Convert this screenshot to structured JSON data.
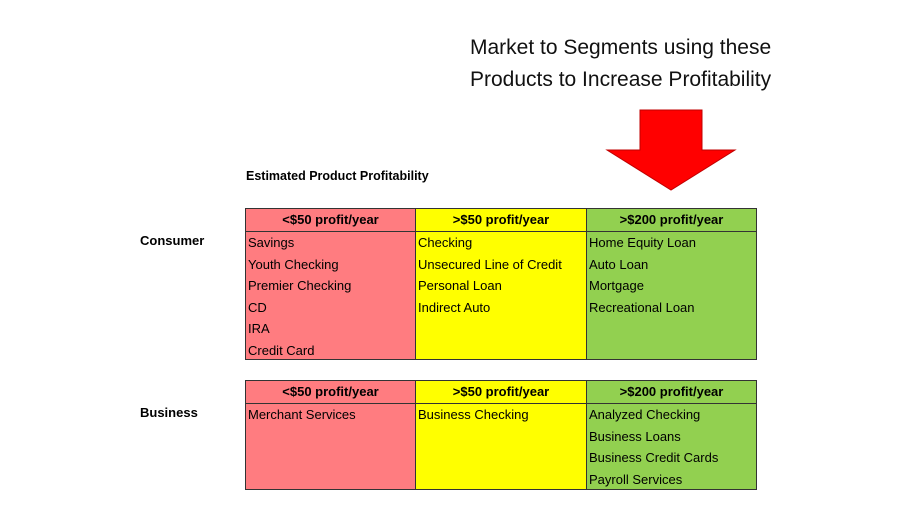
{
  "heading": {
    "line1": "Market to Segments using these",
    "line2": "Products to Increase Profitability"
  },
  "subtitle": "Estimated Product Profitability",
  "sections": [
    {
      "label": "Consumer",
      "columns": [
        {
          "header": "<$50 profit/year",
          "items": [
            "Savings",
            "Youth Checking",
            "Premier Checking",
            "CD",
            "IRA",
            "Credit Card"
          ]
        },
        {
          "header": ">$50 profit/year",
          "items": [
            "Checking",
            "Unsecured Line of Credit",
            "Personal Loan",
            "Indirect Auto"
          ]
        },
        {
          "header": ">$200 profit/year",
          "items": [
            "Home Equity Loan",
            "Auto Loan",
            "Mortgage",
            "Recreational Loan"
          ]
        }
      ]
    },
    {
      "label": "Business",
      "columns": [
        {
          "header": "<$50 profit/year",
          "items": [
            "Merchant Services"
          ]
        },
        {
          "header": ">$50 profit/year",
          "items": [
            "Business Checking"
          ]
        },
        {
          "header": ">$200 profit/year",
          "items": [
            "Analyzed Checking",
            "Business Loans",
            "Business Credit Cards",
            "Payroll Services"
          ]
        }
      ]
    }
  ]
}
